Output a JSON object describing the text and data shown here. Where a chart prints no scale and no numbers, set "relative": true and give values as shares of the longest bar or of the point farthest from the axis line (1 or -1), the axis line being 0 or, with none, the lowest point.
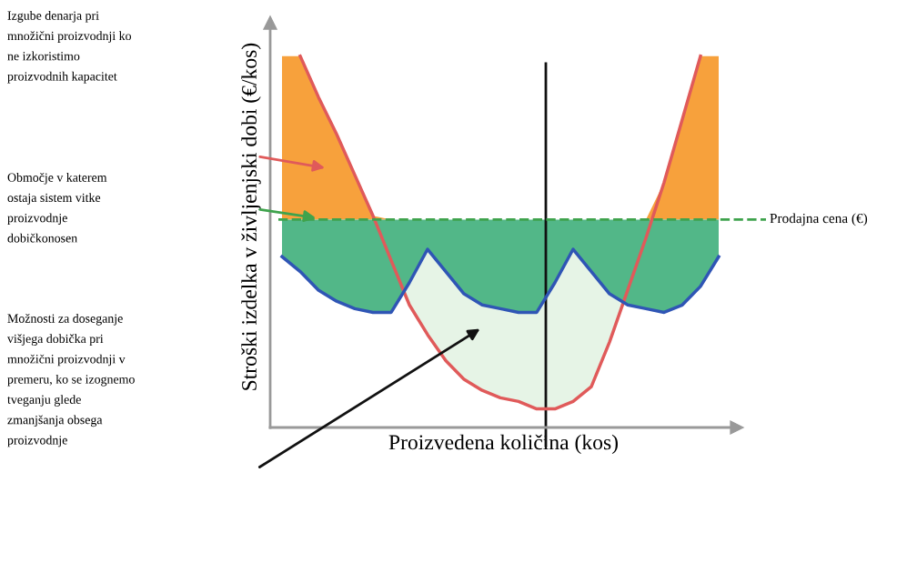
{
  "chart_data": {
    "type": "line",
    "relative": true,
    "xlabel": "Proizvedena količina (kos)",
    "ylabel": "Stroški izdelka v življenjski dobi (€/kos)",
    "categories": [
      null,
      null,
      null,
      null,
      null,
      null,
      null,
      null,
      null,
      null,
      null,
      null,
      null,
      null,
      null,
      null,
      null,
      null,
      null,
      null,
      null,
      null,
      null,
      null,
      null
    ],
    "series": [
      {
        "color": "#e05a5a",
        "values": [
          null,
          1.0,
          0.89,
          0.79,
          0.68,
          0.57,
          0.45,
          0.33,
          0.25,
          0.18,
          0.13,
          0.1,
          0.08,
          0.07,
          0.05,
          0.05,
          0.07,
          0.11,
          0.23,
          0.37,
          0.51,
          0.66,
          0.83,
          1.0,
          null
        ]
      },
      {
        "color": "#2f55b5",
        "values": [
          0.46,
          0.42,
          0.37,
          0.34,
          0.32,
          0.31,
          0.31,
          0.39,
          0.48,
          0.42,
          0.36,
          0.33,
          0.32,
          0.31,
          0.31,
          0.39,
          0.48,
          0.42,
          0.36,
          0.33,
          0.32,
          0.31,
          0.33,
          0.38,
          0.46
        ]
      }
    ],
    "ref_lines": [
      {
        "axis": "y",
        "value": 0.56,
        "label": "Prodajna cena (€)",
        "color": "#3fa34d",
        "line_style": "dashed"
      }
    ],
    "annotations": [
      "Izgube denarja pri\nmnožični proizvodnji ko\nne izkoristimo\nproizvodnih kapacitet",
      "Območje v katerem\nostaja sistem vitke\nproizvodnje\ndobičkonosen",
      "Možnosti za doseganje\nvišjega dobička pri\nmnožični proizvodnji v\npremeru, ko se izognemo\ntveganju glede\nzmanjšanja obsega\nproizvodnje"
    ],
    "grid": false,
    "legend": false,
    "marker": "none",
    "line_style": "solid"
  }
}
